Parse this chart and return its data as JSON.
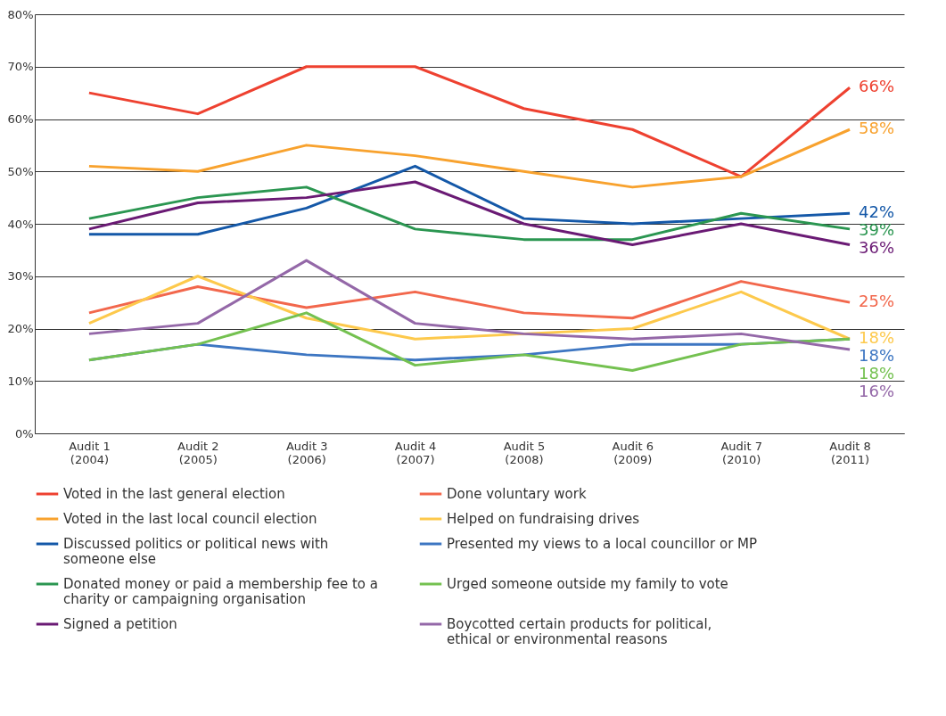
{
  "chart_data": {
    "type": "line",
    "categories": [
      "Audit 1 (2004)",
      "Audit 2 (2005)",
      "Audit 3 (2006)",
      "Audit 4 (2007)",
      "Audit 5 (2008)",
      "Audit 6 (2009)",
      "Audit 7 (2010)",
      "Audit 8 (2011)"
    ],
    "series": [
      {
        "name": "Voted in the last general election",
        "color": "#ee4130",
        "values": [
          65,
          61,
          70,
          70,
          62,
          58,
          49,
          66
        ],
        "value_labels": [
          null,
          null,
          null,
          null,
          null,
          null,
          null,
          "66%"
        ]
      },
      {
        "name": "Voted in the last local council election",
        "color": "#f8a22e",
        "values": [
          51,
          50,
          55,
          53,
          50,
          47,
          49,
          58
        ],
        "value_labels": [
          null,
          null,
          null,
          null,
          null,
          null,
          null,
          "58%"
        ]
      },
      {
        "name": "Discussed politics or political news with someone else",
        "color": "#1458a8",
        "values": [
          38,
          38,
          43,
          51,
          41,
          40,
          41,
          42
        ],
        "value_labels": [
          null,
          null,
          null,
          null,
          null,
          null,
          null,
          "42%"
        ]
      },
      {
        "name": "Donated money or paid a membership fee to a charity or campaigning organisation",
        "color": "#2b9651",
        "values": [
          41,
          45,
          47,
          39,
          37,
          37,
          42,
          39
        ],
        "value_labels": [
          null,
          null,
          null,
          null,
          null,
          null,
          null,
          "39%"
        ]
      },
      {
        "name": "Signed a petition",
        "color": "#6a1a74",
        "values": [
          39,
          44,
          45,
          48,
          40,
          36,
          40,
          36
        ],
        "value_labels": [
          null,
          null,
          null,
          null,
          null,
          null,
          null,
          "36%"
        ]
      },
      {
        "name": "Done voluntary work",
        "color": "#f2674c",
        "values": [
          23,
          28,
          24,
          27,
          23,
          22,
          29,
          25
        ],
        "value_labels": [
          null,
          null,
          null,
          null,
          null,
          null,
          null,
          "25%"
        ]
      },
      {
        "name": "Helped on fundraising drives",
        "color": "#fdc94c",
        "values": [
          21,
          30,
          22,
          18,
          19,
          20,
          27,
          18
        ],
        "value_labels": [
          null,
          null,
          null,
          null,
          null,
          null,
          null,
          "18%"
        ]
      },
      {
        "name": "Presented my views to a local councillor or MP",
        "color": "#3d76c2",
        "values": [
          14,
          17,
          15,
          14,
          15,
          17,
          17,
          18
        ],
        "value_labels": [
          null,
          null,
          null,
          null,
          null,
          null,
          null,
          "18%"
        ]
      },
      {
        "name": "Urged someone outside my family to vote",
        "color": "#74c150",
        "values": [
          14,
          17,
          23,
          13,
          15,
          12,
          17,
          18
        ],
        "value_labels": [
          null,
          null,
          null,
          null,
          null,
          null,
          null,
          "18%"
        ]
      },
      {
        "name": "Boycotted certain products for political, ethical or environmental reasons",
        "color": "#9468a8",
        "values": [
          19,
          21,
          33,
          21,
          19,
          18,
          19,
          16
        ],
        "value_labels": [
          null,
          null,
          null,
          null,
          null,
          null,
          null,
          "16%"
        ]
      }
    ],
    "ylim": [
      0,
      80
    ],
    "yticks": [
      {
        "value": 0,
        "label": "0%"
      },
      {
        "value": 10,
        "label": "10%"
      },
      {
        "value": 20,
        "label": "20%"
      },
      {
        "value": 30,
        "label": "30%"
      },
      {
        "value": 40,
        "label": "40%"
      },
      {
        "value": 50,
        "label": "50%"
      },
      {
        "value": 60,
        "label": "60%"
      },
      {
        "value": 70,
        "label": "70%"
      },
      {
        "value": 80,
        "label": "80%"
      }
    ],
    "grid": "y",
    "legend": "bottom",
    "line_style": "solid"
  }
}
